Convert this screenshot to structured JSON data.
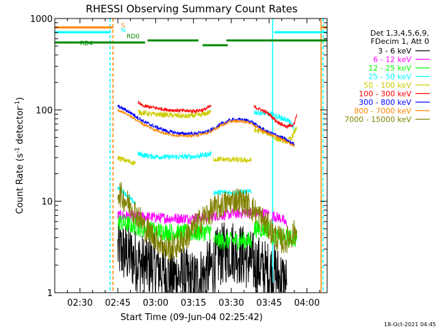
{
  "chart_data": {
    "type": "line",
    "title": "RHESSI Observing Summary Count Rates",
    "xlabel": "Start Time (09-Jun-04 02:25:42)",
    "ylabel_main": "Count Rate (s",
    "ylabel_exp1": "-1",
    "ylabel_mid": " detector",
    "ylabel_exp2": "-1",
    "ylabel_end": ")",
    "yscale": "log",
    "ylim": [
      1,
      1000
    ],
    "xlim_minutes": [
      140,
      248
    ],
    "x_ticks": [
      {
        "t": 150,
        "label": "02:30"
      },
      {
        "t": 165,
        "label": "02:45"
      },
      {
        "t": 180,
        "label": "03:00"
      },
      {
        "t": 195,
        "label": "03:15"
      },
      {
        "t": 210,
        "label": "03:30"
      },
      {
        "t": 225,
        "label": "03:45"
      },
      {
        "t": 240,
        "label": "04:00"
      }
    ],
    "y_ticks": [
      {
        "v": 1,
        "label": "1"
      },
      {
        "v": 10,
        "label": "10"
      },
      {
        "v": 100,
        "label": "100"
      },
      {
        "v": 1000,
        "label": "1000"
      }
    ],
    "legend_header": [
      "Det 1,3,4,5,6,9,",
      "FDecim 1, Att 0"
    ],
    "series": [
      {
        "name": "3 - 6 keV",
        "color": "#000000",
        "noise": 0.35,
        "segments": [
          [
            [
              165,
              3.0
            ],
            [
              170,
              2.5
            ],
            [
              175,
              2.0
            ],
            [
              180,
              2.0
            ],
            [
              185,
              1.5
            ],
            [
              190,
              1.5
            ],
            [
              195,
              1.3
            ],
            [
              200,
              1.6
            ],
            [
              203,
              2.0
            ],
            [
              205,
              2.5
            ],
            [
              210,
              3.0
            ],
            [
              215,
              2.5
            ],
            [
              220,
              2.0
            ],
            [
              224,
              1.7
            ],
            [
              227,
              1.6
            ],
            [
              231,
              1.3
            ],
            [
              232,
              1.2
            ]
          ]
        ]
      },
      {
        "name": "6 - 12 keV",
        "color": "#ff00ff",
        "noise": 0.06,
        "segments": [
          [
            [
              165,
              7.0
            ],
            [
              175,
              6.8
            ],
            [
              185,
              6.5
            ],
            [
              195,
              6.5
            ],
            [
              205,
              7.0
            ],
            [
              215,
              7.5
            ],
            [
              225,
              7.3
            ]
          ],
          [
            [
              226,
              7.0
            ],
            [
              230,
              6.5
            ],
            [
              232,
              5.5
            ]
          ]
        ]
      },
      {
        "name": "12 - 25 keV",
        "color": "#00ff00",
        "noise": 0.1,
        "segments": [
          [
            [
              165,
              6.0
            ],
            [
              170,
              5.5
            ],
            [
              175,
              5.0
            ],
            [
              180,
              4.8
            ],
            [
              185,
              4.6
            ],
            [
              190,
              4.5
            ],
            [
              195,
              4.5
            ],
            [
              200,
              4.6
            ],
            [
              202,
              4.8
            ]
          ],
          [
            [
              203,
              3.7
            ],
            [
              210,
              3.7
            ],
            [
              216,
              3.7
            ],
            [
              218,
              3.7
            ]
          ],
          [
            [
              219,
              5.0
            ],
            [
              225,
              5.0
            ]
          ],
          [
            [
              226,
              4.2
            ],
            [
              230,
              4.0
            ],
            [
              235,
              3.9
            ],
            [
              236,
              3.9
            ]
          ]
        ]
      },
      {
        "name": "25 - 50 keV",
        "color": "#00ffff",
        "noise": 0.03,
        "segments": [
          [
            [
              165,
              14.0
            ],
            [
              167,
              13.0
            ],
            [
              170,
              10.5
            ],
            [
              172,
              9.5
            ]
          ],
          [
            [
              173,
              33.0
            ],
            [
              178,
              31.0
            ],
            [
              185,
              30.5
            ],
            [
              195,
              30.8
            ],
            [
              202,
              33.0
            ]
          ],
          [
            [
              203,
              12.5
            ],
            [
              210,
              12.5
            ],
            [
              218,
              12.7
            ]
          ],
          [
            [
              219,
              95.0
            ],
            [
              225,
              90.0
            ],
            [
              228,
              85.0
            ],
            [
              232,
              78.0
            ],
            [
              234,
              70.0
            ],
            [
              235,
              60.0
            ]
          ]
        ]
      },
      {
        "name": "50 - 100 keV",
        "color": "#cccc00",
        "noise": 0.03,
        "segments": [
          [
            [
              165,
              30.0
            ],
            [
              168,
              28.0
            ],
            [
              172,
              26.0
            ]
          ],
          [
            [
              173,
              95.0
            ],
            [
              178,
              90.0
            ],
            [
              185,
              88.0
            ],
            [
              192,
              85.0
            ],
            [
              198,
              88.0
            ],
            [
              202,
              95.0
            ]
          ],
          [
            [
              203,
              29.0
            ],
            [
              210,
              28.5
            ],
            [
              218,
              28.0
            ]
          ],
          [
            [
              219,
              60.0
            ],
            [
              222,
              58.0
            ],
            [
              225,
              55.0
            ],
            [
              228,
              48.0
            ],
            [
              232,
              45.0
            ],
            [
              234,
              50.0
            ],
            [
              236,
              65.0
            ]
          ]
        ]
      },
      {
        "name": "100 - 300 keV",
        "color": "#ff0000",
        "noise": 0.02,
        "segments": [
          [
            [
              173,
              120.0
            ],
            [
              175,
              110.0
            ],
            [
              180,
              105.0
            ],
            [
              185,
              100.0
            ],
            [
              190,
              98.0
            ],
            [
              195,
              97.0
            ],
            [
              199,
              100.0
            ],
            [
              202,
              110.0
            ]
          ],
          [
            [
              219,
              108.0
            ],
            [
              222,
              100.0
            ],
            [
              225,
              90.0
            ],
            [
              228,
              75.0
            ],
            [
              232,
              65.0
            ],
            [
              235,
              70.0
            ],
            [
              236,
              90.0
            ]
          ]
        ]
      },
      {
        "name": "300 - 800 keV",
        "color": "#0000ff",
        "noise": 0.02,
        "segments": [
          [
            [
              165,
              110.0
            ],
            [
              168,
              100.0
            ],
            [
              171,
              90.0
            ],
            [
              175,
              75.0
            ],
            [
              180,
              65.0
            ],
            [
              185,
              58.0
            ],
            [
              190,
              55.0
            ],
            [
              195,
              55.0
            ],
            [
              200,
              57.0
            ],
            [
              203,
              62.0
            ],
            [
              206,
              70.0
            ],
            [
              210,
              78.0
            ],
            [
              215,
              78.0
            ],
            [
              218,
              74.0
            ],
            [
              221,
              65.0
            ],
            [
              224,
              58.0
            ],
            [
              227,
              54.0
            ],
            [
              230,
              50.0
            ],
            [
              233,
              45.0
            ],
            [
              235,
              42.0
            ]
          ]
        ]
      },
      {
        "name": "800 - 7000 keV",
        "color": "#ff8800",
        "noise": 0.015,
        "segments": [
          [
            [
              165,
              100.0
            ],
            [
              168,
              92.0
            ],
            [
              171,
              82.0
            ],
            [
              175,
              70.0
            ],
            [
              180,
              60.0
            ],
            [
              185,
              54.0
            ],
            [
              190,
              52.0
            ],
            [
              195,
              52.0
            ],
            [
              200,
              55.0
            ],
            [
              203,
              60.0
            ],
            [
              206,
              68.0
            ],
            [
              210,
              75.0
            ],
            [
              215,
              75.0
            ],
            [
              218,
              71.0
            ],
            [
              221,
              62.0
            ],
            [
              224,
              56.0
            ],
            [
              227,
              52.0
            ],
            [
              230,
              48.0
            ],
            [
              233,
              43.0
            ],
            [
              235,
              40.0
            ]
          ]
        ]
      },
      {
        "name": "7000 - 15000 keV",
        "color": "#808000",
        "noise": 0.15,
        "segments": [
          [
            [
              165,
              13.0
            ],
            [
              167,
              11.0
            ],
            [
              170,
              9.0
            ],
            [
              173,
              7.0
            ],
            [
              176,
              5.0
            ],
            [
              180,
              4.0
            ],
            [
              184,
              3.0
            ],
            [
              188,
              3.2
            ],
            [
              192,
              4.0
            ],
            [
              196,
              5.5
            ],
            [
              200,
              7.0
            ],
            [
              204,
              8.5
            ],
            [
              208,
              9.5
            ],
            [
              212,
              10.5
            ],
            [
              216,
              9.5
            ],
            [
              220,
              7.5
            ],
            [
              224,
              5.5
            ],
            [
              228,
              4.0
            ],
            [
              231,
              3.6
            ],
            [
              235,
              4.5
            ],
            [
              236,
              4.5
            ]
          ]
        ]
      }
    ],
    "flags": [
      {
        "label": "S",
        "color": "#ff8800",
        "label_t": 166.3,
        "label_y": 40,
        "segments": [
          [
            140,
            163.0,
            40
          ],
          [
            245.5,
            248,
            40
          ]
        ]
      },
      {
        "label": "N",
        "color": "#00ffff",
        "label_t": 166.3,
        "label_y": 47,
        "segments": [
          [
            140,
            161.8,
            47
          ],
          [
            227,
            248,
            47
          ]
        ]
      },
      {
        "label": "RD0",
        "color": "#008800",
        "label_t": 168.5,
        "label_y": 56,
        "segments": [
          [
            176.8,
            197.0,
            59
          ],
          [
            208,
            248,
            59
          ]
        ]
      },
      {
        "label": "RD4",
        "color": "#008800",
        "label_t": 150.0,
        "label_y": 66,
        "segments": [
          [
            140,
            175.8,
            62
          ],
          [
            198.6,
            208.6,
            66
          ],
          [
            227.5,
            248,
            59
          ]
        ]
      }
    ],
    "vertical_lines": [
      {
        "t": 161.9,
        "color": "#00ffff",
        "style": "dashed"
      },
      {
        "t": 163.1,
        "color": "#ff8800",
        "style": "dashed"
      },
      {
        "t": 226.4,
        "color": "#00ffff",
        "style": "solid"
      },
      {
        "t": 245.6,
        "color": "#ff8800",
        "style": "solid"
      },
      {
        "t": 246.4,
        "color": "#00ffff",
        "style": "dashed"
      }
    ]
  },
  "footer": {
    "generated": "18-Oct-2021 04:45"
  }
}
